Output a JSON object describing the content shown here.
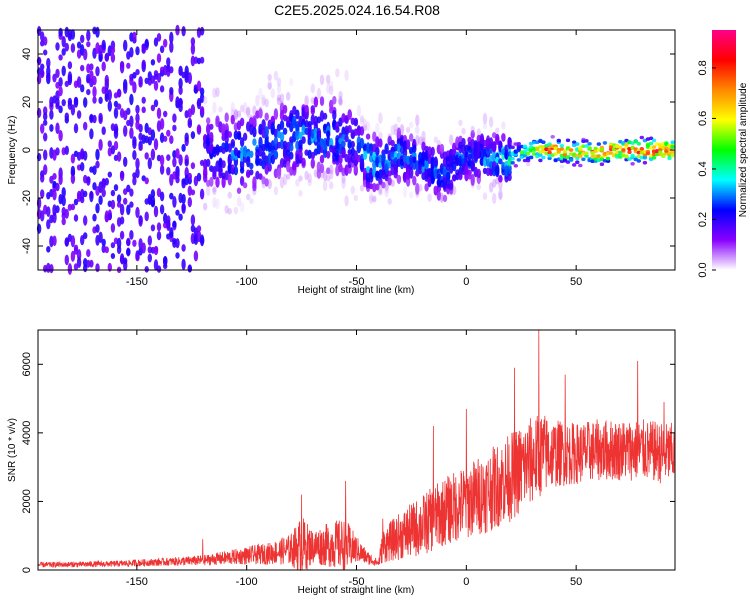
{
  "title": "C2E5.2025.024.16.54.R08",
  "colors": {
    "snr_line": "#ee3333",
    "axis": "#000000",
    "background": "#ffffff"
  },
  "chart_data": [
    {
      "type": "heatmap",
      "xlabel": "Height of straight line (km)",
      "ylabel": "Frequency (Hz)",
      "xlim": [
        -195,
        95
      ],
      "ylim": [
        -50,
        50
      ],
      "x_ticks": [
        "-150",
        "-100",
        "-50",
        "0",
        "50"
      ],
      "x_tick_values": [
        -150,
        -100,
        -50,
        0,
        50
      ],
      "y_ticks": [
        "-40",
        "-20",
        "0",
        "20",
        "40"
      ],
      "y_tick_values": [
        -40,
        -20,
        0,
        20,
        40
      ],
      "colorbar": {
        "label": "Normalized spectral amplitude",
        "range": [
          0,
          0.95
        ],
        "ticks": [
          "0.0",
          "0.2",
          "0.4",
          "0.6",
          "0.8"
        ],
        "tick_values": [
          0.0,
          0.2,
          0.4,
          0.6,
          0.8
        ],
        "colormap": [
          "#ffffff",
          "#8800ff",
          "#0000ff",
          "#00ffff",
          "#00ff00",
          "#ffff00",
          "#ff8800",
          "#ff0000",
          "#ff0088"
        ]
      },
      "ridge": {
        "x": [
          -120,
          -110,
          -100,
          -90,
          -80,
          -70,
          -60,
          -50,
          -45,
          -40,
          -30,
          -20,
          -10,
          0,
          10,
          20,
          30,
          40,
          50,
          60,
          70,
          80,
          90,
          95
        ],
        "center_freq": [
          -1,
          -2,
          -1,
          2,
          6,
          6,
          5,
          4,
          -5,
          -6,
          -2,
          -6,
          -10,
          -2,
          -4,
          -3,
          0,
          0,
          -1,
          -1,
          0,
          0,
          0,
          0
        ],
        "peak_amplitude": [
          0.22,
          0.28,
          0.3,
          0.3,
          0.3,
          0.3,
          0.3,
          0.25,
          0.4,
          0.32,
          0.3,
          0.3,
          0.3,
          0.3,
          0.3,
          0.4,
          0.55,
          0.9,
          0.7,
          0.85,
          0.8,
          0.9,
          0.85,
          0.8
        ]
      }
    },
    {
      "type": "line",
      "xlabel": "Height of straight line (km)",
      "ylabel": "SNR (10 * v/v)",
      "xlim": [
        -195,
        95
      ],
      "ylim": [
        0,
        7000
      ],
      "x_ticks": [
        "-150",
        "-100",
        "-50",
        "0",
        "50"
      ],
      "x_tick_values": [
        -150,
        -100,
        -50,
        0,
        50
      ],
      "y_ticks": [
        "0",
        "2000",
        "4000",
        "6000"
      ],
      "y_tick_values": [
        0,
        2000,
        4000,
        6000
      ],
      "series": [
        {
          "x": [
            -195,
            -180,
            -160,
            -140,
            -120,
            -110,
            -100,
            -90,
            -80,
            -75,
            -70,
            -60,
            -55,
            -50,
            -45,
            -40,
            -38,
            -30,
            -20,
            -10,
            0,
            10,
            20,
            30,
            35,
            40,
            50,
            60,
            70,
            80,
            90,
            95
          ],
          "envelope_mean": [
            150,
            160,
            180,
            230,
            280,
            350,
            420,
            480,
            600,
            700,
            680,
            750,
            700,
            600,
            350,
            200,
            700,
            1000,
            1300,
            1700,
            2000,
            2300,
            2700,
            3200,
            3400,
            3400,
            3400,
            3500,
            3500,
            3500,
            3400,
            3400
          ],
          "envelope_amp": [
            80,
            80,
            90,
            110,
            150,
            200,
            260,
            320,
            450,
            900,
            500,
            700,
            800,
            400,
            200,
            100,
            500,
            700,
            900,
            1000,
            1100,
            1200,
            1300,
            1300,
            1200,
            1000,
            900,
            900,
            900,
            900,
            900,
            900
          ],
          "peaks": [
            [
              -120,
              900
            ],
            [
              -75,
              2200
            ],
            [
              -55,
              2600
            ],
            [
              -38,
              1500
            ],
            [
              -15,
              4200
            ],
            [
              0,
              4700
            ],
            [
              22,
              5900
            ],
            [
              33,
              7000
            ],
            [
              45,
              5700
            ],
            [
              78,
              6100
            ],
            [
              90,
              4900
            ]
          ]
        }
      ]
    }
  ]
}
